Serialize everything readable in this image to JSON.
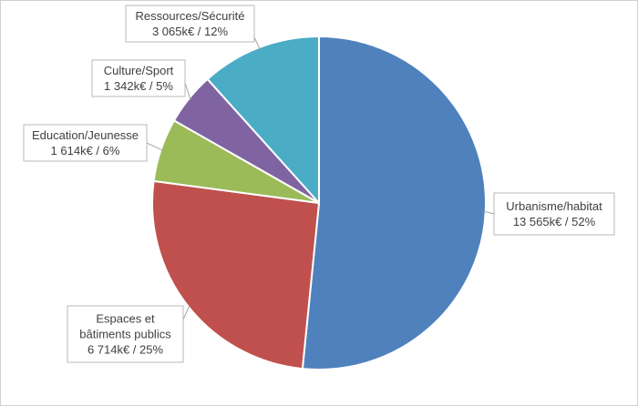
{
  "chart_data": {
    "type": "pie",
    "unit": "k€",
    "slices": [
      {
        "name": "Urbanisme/habitat",
        "value": 13565,
        "percent": 52,
        "color": "#4f81bd",
        "label_lines": [
          "Urbanisme/habitat",
          "13 565k€ / 52%"
        ]
      },
      {
        "name": "Espaces et bâtiments publics",
        "value": 6714,
        "percent": 25,
        "color": "#c0504d",
        "label_lines": [
          "Espaces et",
          "bâtiments publics",
          "6 714k€ / 25%"
        ]
      },
      {
        "name": "Education/Jeunesse",
        "value": 1614,
        "percent": 6,
        "color": "#9bbb59",
        "label_lines": [
          "Education/Jeunesse",
          "1 614k€ / 6%"
        ]
      },
      {
        "name": "Culture/Sport",
        "value": 1342,
        "percent": 5,
        "color": "#8064a2",
        "label_lines": [
          "Culture/Sport",
          "1 342k€ / 5%"
        ]
      },
      {
        "name": "Ressources/Sécurité",
        "value": 3065,
        "percent": 12,
        "color": "#4bacc6",
        "label_lines": [
          "Ressources/Sécurité",
          "3 065k€ / 12%"
        ]
      }
    ]
  }
}
